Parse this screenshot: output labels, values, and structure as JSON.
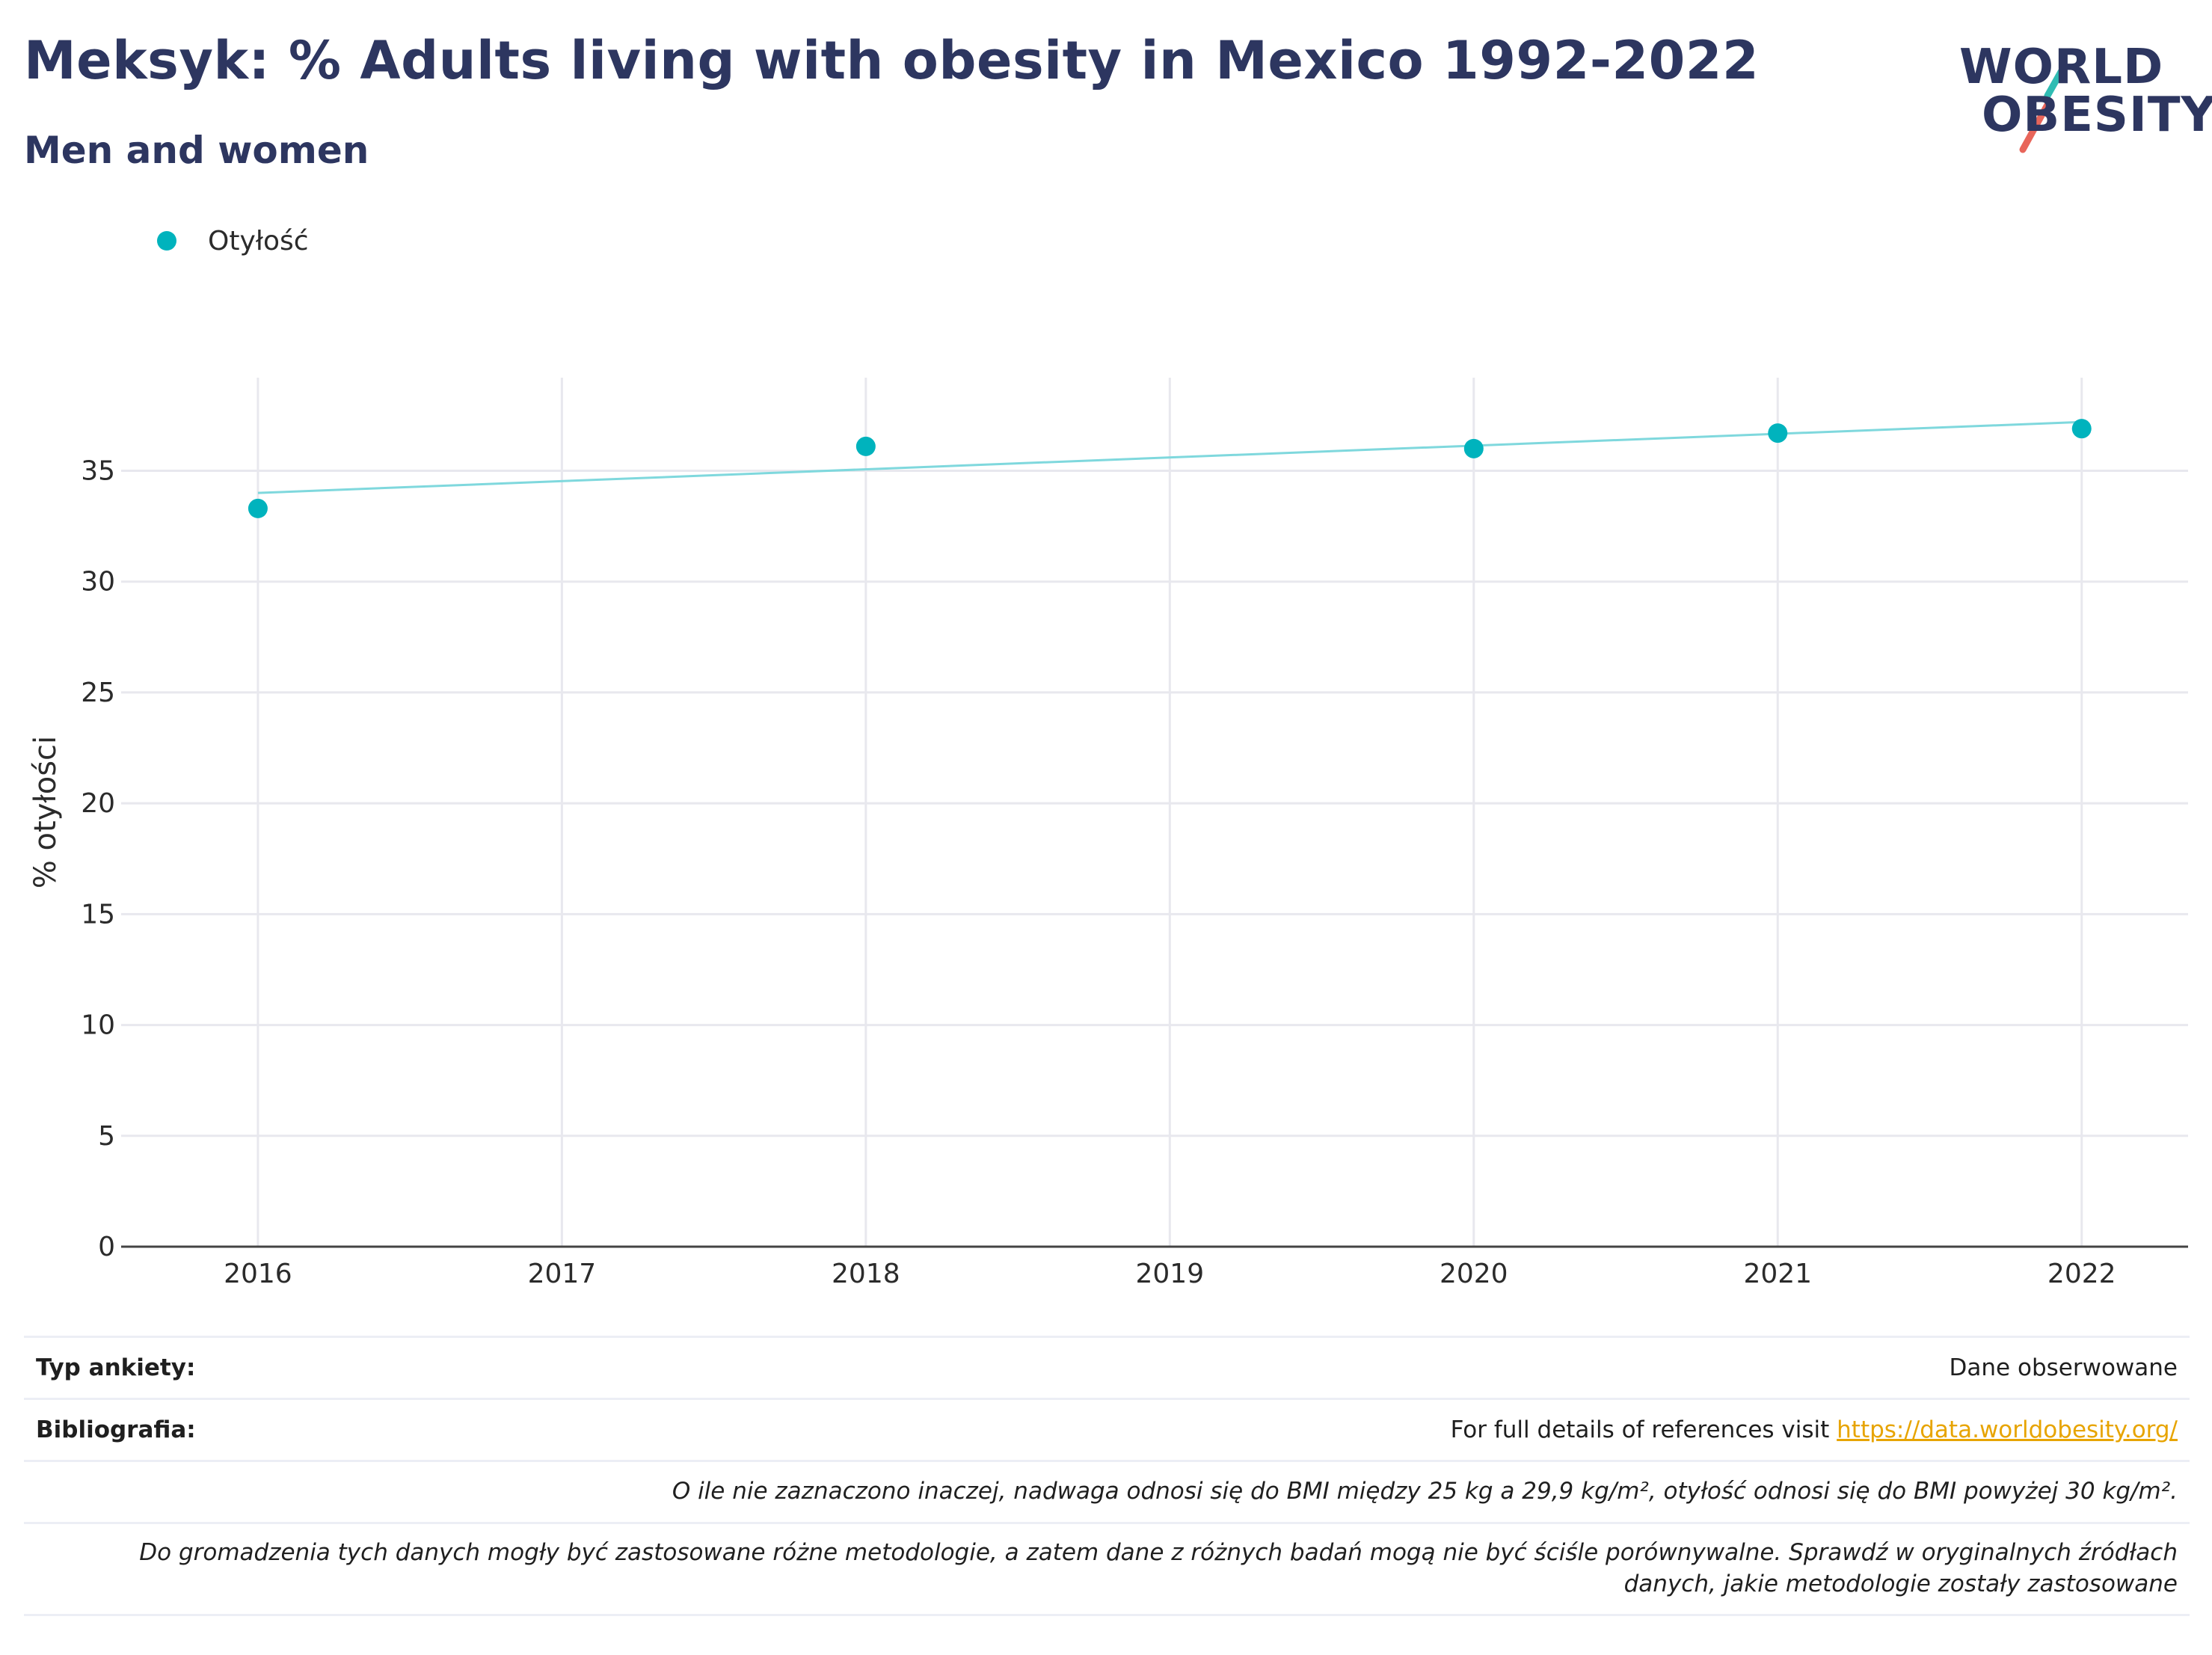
{
  "header": {
    "title": "Meksyk: % Adults living with obesity in Mexico 1992-2022",
    "subtitle": "Men and women"
  },
  "logo": {
    "line1": "WORLD",
    "line2": "OBESITY",
    "accent_teal": "#2fbcb3",
    "accent_red": "#e8655a"
  },
  "colors": {
    "series": "#00b3bd",
    "trend": "#7fd8dd",
    "grid": "#e8e8ee",
    "axis": "#444444",
    "title": "#2d3660"
  },
  "chart_data": {
    "type": "scatter",
    "xlabel": "",
    "ylabel": "% otyłości",
    "xlim": [
      2015.55,
      2022.35
    ],
    "ylim": [
      0,
      39.2
    ],
    "x_ticks": [
      2016,
      2017,
      2018,
      2019,
      2020,
      2021,
      2022
    ],
    "y_ticks": [
      0,
      5,
      10,
      15,
      20,
      25,
      30,
      35
    ],
    "grid": true,
    "legend_position": "top-left",
    "series": [
      {
        "name": "Otyłość",
        "x": [
          2016,
          2018,
          2020,
          2021,
          2022
        ],
        "y": [
          33.3,
          36.1,
          36.0,
          36.7,
          36.9
        ]
      }
    ],
    "trendline": {
      "x": [
        2016,
        2022
      ],
      "y": [
        34.0,
        37.2
      ]
    }
  },
  "footer": {
    "survey_label": "Typ ankiety:",
    "survey_value": "Dane obserwowane",
    "biblio_label": "Bibliografia:",
    "biblio_text": "For full details of references visit ",
    "biblio_link": "https://data.worldobesity.org/",
    "note1": "O ile nie zaznaczono inaczej, nadwaga odnosi się do BMI między 25 kg a 29,9 kg/m², otyłość odnosi się do BMI powyżej 30 kg/m².",
    "note2_line1": "Do gromadzenia tych danych mogły być zastosowane różne metodologie, a zatem dane z różnych badań mogą nie być ściśle porównywalne. Sprawdź w oryginalnych źródłach",
    "note2_line2": "danych, jakie metodologie zostały zastosowane"
  }
}
